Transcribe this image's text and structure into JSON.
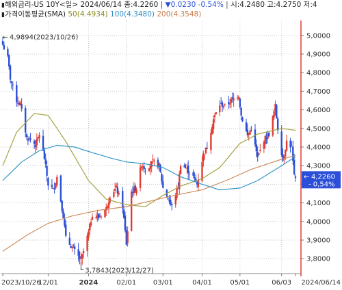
{
  "header": {
    "line1_title": "해외금리-US 10Y",
    "line1_period": "<일>",
    "line1_date": "2024/06/14",
    "line1_close_label": "종:",
    "line1_close": "4.2260",
    "line1_change_arrow": "▼",
    "line1_change": "0.0230",
    "line1_change_pct": "-0.54%",
    "line1_open_label": "시:",
    "line1_open": "4.2480",
    "line1_high_label": "고:",
    "line1_high": "4.2750",
    "line1_low_label": "저:4"
  },
  "legend": {
    "title": "가격이동평균(SMA)",
    "sma50": "50(4.4934)",
    "sma100": "100(4.3480)",
    "sma200": "200(4.3548)"
  },
  "colors": {
    "up": "#e03c32",
    "down": "#2b4fd8",
    "sma50": "#a6a040",
    "sma100": "#2f96c8",
    "sma200": "#cf8c5f",
    "last_price_box": "#2b4fd8",
    "grid": "#c8c8c8",
    "price_axis_line": "#e03c32"
  },
  "chart_data": {
    "type": "candlestick",
    "title": "해외금리-US 10Y <일> 2024/06/14",
    "ylim": [
      3.72,
      5.08
    ],
    "y_ticks": [
      "5,0000",
      "4,9000",
      "4,8000",
      "4,7000",
      "4,6000",
      "4,5000",
      "4,4000",
      "4,3000",
      "4,2000",
      "4,1000",
      "4,0000",
      "3,9000",
      "3,8000"
    ],
    "y_tick_values": [
      5.0,
      4.9,
      4.8,
      4.7,
      4.6,
      4.5,
      4.4,
      4.3,
      4.2,
      4.1,
      4.0,
      3.9,
      3.8
    ],
    "x_ticks": [
      "2023/10/26",
      "12/01",
      "2024",
      "02/01",
      "03/01",
      "04/01",
      "05/01",
      "06/03",
      "2024/06/14"
    ],
    "x_tick_dates": [
      "2023-10-26",
      "2023-12-01",
      "2024-01-02",
      "2024-02-01",
      "2024-03-01",
      "2024-04-01",
      "2024-05-01",
      "2024-06-03",
      "2024-06-14"
    ],
    "bold_tick": "2024",
    "annotations": {
      "high": {
        "label": "4,9894(2023/10/26)",
        "value": 4.9894,
        "date": "2023-10-26"
      },
      "low": {
        "label": "3,7843(2023/12/27)",
        "value": 3.7843,
        "date": "2023-12-27"
      }
    },
    "last_price": {
      "value": 4.226,
      "label": "4,2260",
      "change_pct": "-0,54%"
    },
    "close_path": [
      [
        "2023-10-26",
        4.95
      ],
      [
        "2023-10-30",
        4.88
      ],
      [
        "2023-11-01",
        4.77
      ],
      [
        "2023-11-06",
        4.65
      ],
      [
        "2023-11-09",
        4.63
      ],
      [
        "2023-11-14",
        4.45
      ],
      [
        "2023-11-17",
        4.44
      ],
      [
        "2023-11-21",
        4.41
      ],
      [
        "2023-11-24",
        4.47
      ],
      [
        "2023-11-28",
        4.34
      ],
      [
        "2023-12-01",
        4.2
      ],
      [
        "2023-12-05",
        4.17
      ],
      [
        "2023-12-08",
        4.24
      ],
      [
        "2023-12-13",
        4.03
      ],
      [
        "2023-12-15",
        3.91
      ],
      [
        "2023-12-20",
        3.86
      ],
      [
        "2023-12-27",
        3.79
      ],
      [
        "2024-01-02",
        3.94
      ],
      [
        "2024-01-05",
        4.04
      ],
      [
        "2024-01-10",
        4.02
      ],
      [
        "2024-01-16",
        4.07
      ],
      [
        "2024-01-19",
        4.14
      ],
      [
        "2024-01-24",
        4.18
      ],
      [
        "2024-01-29",
        4.08
      ],
      [
        "2024-02-01",
        3.88
      ],
      [
        "2024-02-05",
        4.16
      ],
      [
        "2024-02-09",
        4.18
      ],
      [
        "2024-02-13",
        4.31
      ],
      [
        "2024-02-16",
        4.28
      ],
      [
        "2024-02-22",
        4.32
      ],
      [
        "2024-02-27",
        4.3
      ],
      [
        "2024-03-01",
        4.18
      ],
      [
        "2024-03-06",
        4.11
      ],
      [
        "2024-03-08",
        4.08
      ],
      [
        "2024-03-13",
        4.19
      ],
      [
        "2024-03-15",
        4.31
      ],
      [
        "2024-03-20",
        4.28
      ],
      [
        "2024-03-25",
        4.24
      ],
      [
        "2024-03-28",
        4.2
      ],
      [
        "2024-04-02",
        4.36
      ],
      [
        "2024-04-05",
        4.4
      ],
      [
        "2024-04-10",
        4.55
      ],
      [
        "2024-04-15",
        4.63
      ],
      [
        "2024-04-19",
        4.62
      ],
      [
        "2024-04-24",
        4.65
      ],
      [
        "2024-04-30",
        4.68
      ],
      [
        "2024-05-02",
        4.57
      ],
      [
        "2024-05-07",
        4.46
      ],
      [
        "2024-05-10",
        4.5
      ],
      [
        "2024-05-15",
        4.34
      ],
      [
        "2024-05-20",
        4.44
      ],
      [
        "2024-05-24",
        4.47
      ],
      [
        "2024-05-29",
        4.62
      ],
      [
        "2024-05-31",
        4.5
      ],
      [
        "2024-06-04",
        4.33
      ],
      [
        "2024-06-07",
        4.43
      ],
      [
        "2024-06-11",
        4.4
      ],
      [
        "2024-06-13",
        4.24
      ],
      [
        "2024-06-14",
        4.226
      ]
    ],
    "series": [
      {
        "name": "SMA 50",
        "last": 4.4934,
        "path": [
          [
            "2023-10-26",
            4.3
          ],
          [
            "2023-11-06",
            4.48
          ],
          [
            "2023-11-20",
            4.58
          ],
          [
            "2023-12-01",
            4.57
          ],
          [
            "2023-12-15",
            4.43
          ],
          [
            "2024-01-02",
            4.22
          ],
          [
            "2024-01-16",
            4.12
          ],
          [
            "2024-02-01",
            4.09
          ],
          [
            "2024-02-16",
            4.08
          ],
          [
            "2024-03-01",
            4.14
          ],
          [
            "2024-03-15",
            4.19
          ],
          [
            "2024-04-01",
            4.23
          ],
          [
            "2024-04-15",
            4.29
          ],
          [
            "2024-05-01",
            4.42
          ],
          [
            "2024-05-15",
            4.47
          ],
          [
            "2024-06-03",
            4.5
          ],
          [
            "2024-06-14",
            4.49
          ]
        ]
      },
      {
        "name": "SMA 100",
        "last": 4.348,
        "path": [
          [
            "2023-10-26",
            4.22
          ],
          [
            "2023-11-10",
            4.32
          ],
          [
            "2023-11-24",
            4.38
          ],
          [
            "2023-12-08",
            4.41
          ],
          [
            "2023-12-22",
            4.4
          ],
          [
            "2024-01-05",
            4.37
          ],
          [
            "2024-01-20",
            4.34
          ],
          [
            "2024-02-01",
            4.32
          ],
          [
            "2024-02-16",
            4.31
          ],
          [
            "2024-03-01",
            4.29
          ],
          [
            "2024-03-15",
            4.24
          ],
          [
            "2024-04-01",
            4.2
          ],
          [
            "2024-04-15",
            4.17
          ],
          [
            "2024-05-01",
            4.18
          ],
          [
            "2024-05-15",
            4.22
          ],
          [
            "2024-06-03",
            4.3
          ],
          [
            "2024-06-14",
            4.348
          ]
        ]
      },
      {
        "name": "SMA 200",
        "last": 4.3548,
        "path": [
          [
            "2023-10-26",
            3.84
          ],
          [
            "2023-11-15",
            3.93
          ],
          [
            "2023-12-01",
            3.99
          ],
          [
            "2023-12-20",
            4.03
          ],
          [
            "2024-01-10",
            4.06
          ],
          [
            "2024-02-01",
            4.08
          ],
          [
            "2024-02-20",
            4.11
          ],
          [
            "2024-03-10",
            4.14
          ],
          [
            "2024-04-01",
            4.17
          ],
          [
            "2024-04-20",
            4.22
          ],
          [
            "2024-05-10",
            4.28
          ],
          [
            "2024-06-01",
            4.33
          ],
          [
            "2024-06-14",
            4.355
          ]
        ]
      }
    ]
  }
}
